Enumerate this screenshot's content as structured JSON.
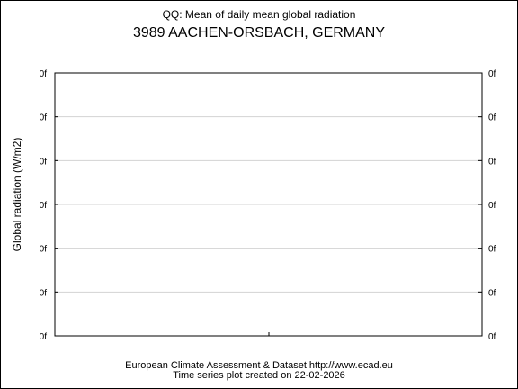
{
  "chart_data": {
    "type": "line",
    "title": "QQ: Mean of daily mean global radiation",
    "subtitle": "3989 AACHEN-ORSBACH, GERMANY",
    "ylabel": "Global radiation (W/m2)",
    "xlabel": "",
    "y_ticks": [
      "0f",
      "0f",
      "0f",
      "0f",
      "0f",
      "0f",
      "0f"
    ],
    "grid": true,
    "series": []
  },
  "footer": {
    "line1": "European Climate Assessment & Dataset  http://www.ecad.eu",
    "line2": "Time series plot created on 22-02-2026"
  },
  "colors": {
    "axis": "#000000",
    "grid": "#d3d3d3"
  }
}
